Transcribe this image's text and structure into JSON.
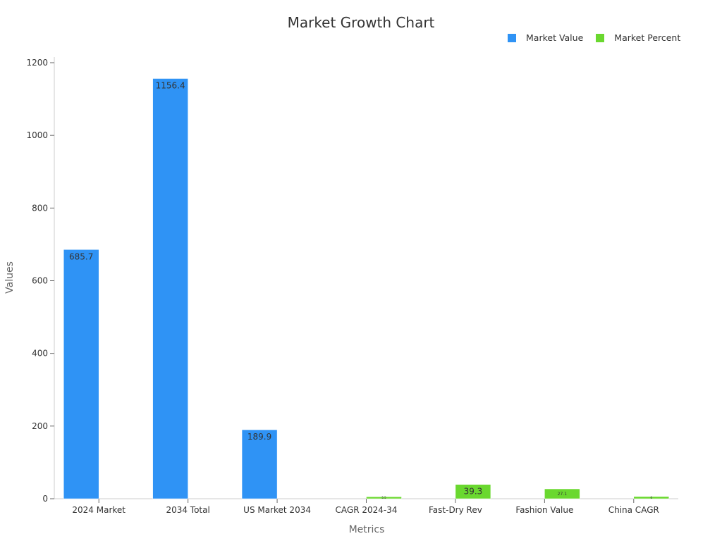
{
  "chart_data": {
    "type": "bar",
    "title": "Market Growth Chart",
    "xlabel": "Metrics",
    "ylabel": "Values",
    "ylim": [
      0,
      1200
    ],
    "yticks": [
      0,
      200,
      400,
      600,
      800,
      1000,
      1200
    ],
    "categories": [
      "2024 Market",
      "2034 Total",
      "US Market 2034",
      "CAGR 2024-34",
      "Fast-Dry Rev",
      "Fashion Value",
      "China CAGR"
    ],
    "legend_position": "top-right",
    "series": [
      {
        "name": "Market Value",
        "color": "#2f93f5",
        "values": [
          685.7,
          1156.4,
          189.9,
          null,
          null,
          null,
          null
        ]
      },
      {
        "name": "Market Percent",
        "color": "#6ad82f",
        "values": [
          null,
          null,
          null,
          5.5,
          39.3,
          27.1,
          6.0
        ]
      }
    ],
    "grid": false
  }
}
